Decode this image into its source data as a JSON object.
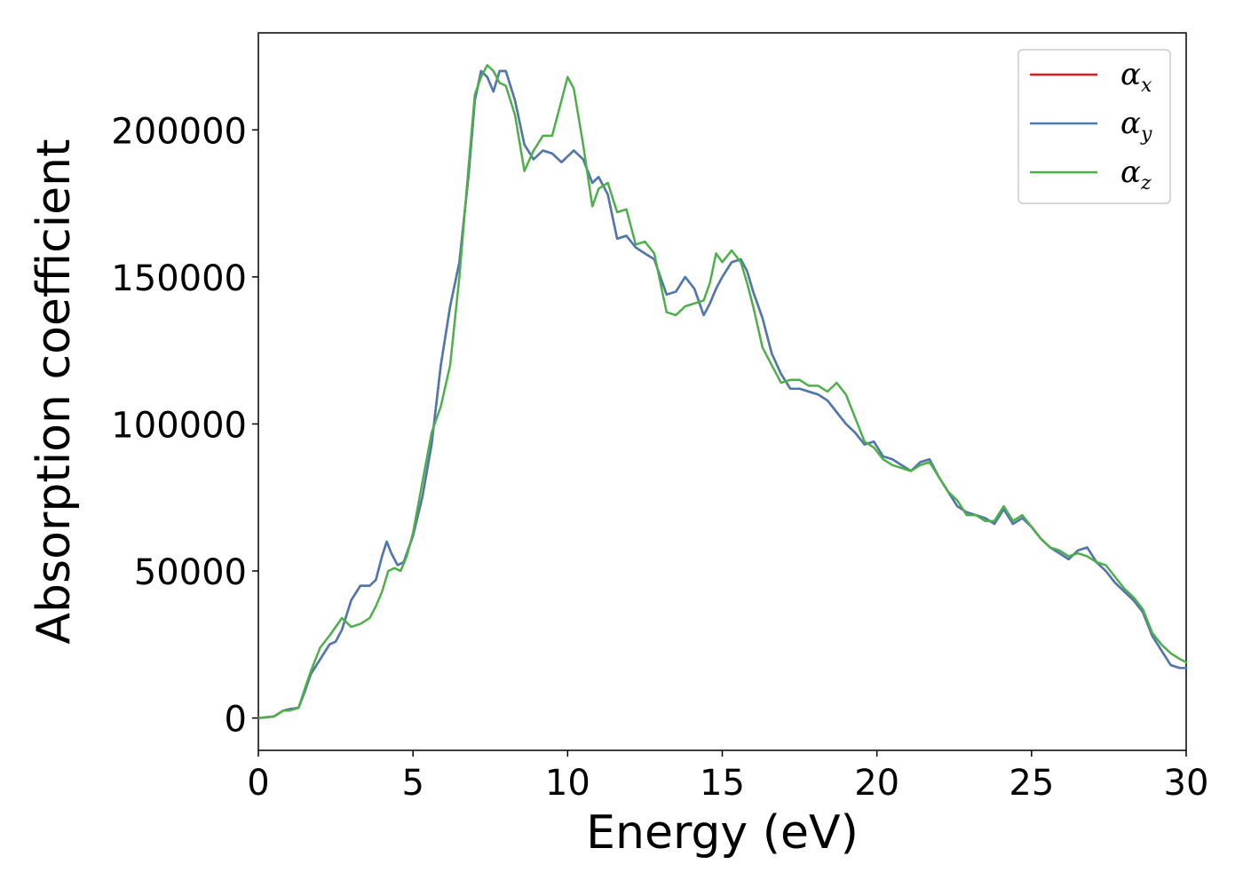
{
  "chart_data": {
    "type": "line",
    "title": "",
    "xlabel": "Energy (eV)",
    "ylabel": "Absorption coefficient",
    "xlim": [
      0,
      30
    ],
    "ylim": [
      -11000,
      233000
    ],
    "xticks": [
      0,
      5,
      10,
      15,
      20,
      25,
      30
    ],
    "xtick_labels": [
      "0",
      "5",
      "10",
      "15",
      "20",
      "25",
      "30"
    ],
    "yticks": [
      0,
      50000,
      100000,
      150000,
      200000
    ],
    "ytick_labels": [
      "0",
      "50000",
      "100000",
      "150000",
      "200000"
    ],
    "grid": false,
    "legend_position": "top-right",
    "series": [
      {
        "name": "α",
        "subscript": "x",
        "color": "#e41a1c",
        "x": [
          0,
          0.5,
          0.8,
          1.0,
          1.3,
          1.5,
          1.7,
          2.0,
          2.3,
          2.5,
          2.7,
          3.0,
          3.3,
          3.6,
          3.8,
          4.0,
          4.15,
          4.3,
          4.5,
          4.7,
          5.0,
          5.3,
          5.6,
          5.9,
          6.2,
          6.5,
          6.8,
          7.0,
          7.2,
          7.4,
          7.6,
          7.8,
          8.0,
          8.3,
          8.6,
          8.9,
          9.2,
          9.5,
          9.8,
          10.0,
          10.2,
          10.5,
          10.8,
          11.0,
          11.3,
          11.6,
          11.9,
          12.2,
          12.5,
          12.8,
          13.0,
          13.2,
          13.5,
          13.8,
          14.1,
          14.4,
          14.6,
          14.8,
          15.0,
          15.3,
          15.6,
          15.8,
          16.0,
          16.3,
          16.6,
          16.9,
          17.2,
          17.5,
          17.8,
          18.1,
          18.4,
          18.7,
          19.0,
          19.3,
          19.6,
          19.9,
          20.2,
          20.5,
          20.8,
          21.1,
          21.4,
          21.7,
          22.0,
          22.3,
          22.6,
          22.9,
          23.2,
          23.5,
          23.8,
          24.1,
          24.4,
          24.7,
          25.0,
          25.3,
          25.6,
          25.9,
          26.2,
          26.5,
          26.8,
          27.1,
          27.4,
          27.7,
          28.0,
          28.3,
          28.6,
          28.9,
          29.2,
          29.5,
          29.8,
          30.0
        ],
        "y": [
          0,
          500,
          2500,
          3000,
          3500,
          9000,
          15000,
          20000,
          25000,
          26000,
          30000,
          40000,
          45000,
          45000,
          47000,
          55000,
          60000,
          56000,
          52000,
          53000,
          62000,
          75000,
          93000,
          120000,
          140000,
          155000,
          185000,
          210000,
          220000,
          218000,
          213000,
          220000,
          220000,
          210000,
          195000,
          190000,
          193000,
          192000,
          189000,
          191000,
          193000,
          190000,
          182000,
          184000,
          178000,
          163000,
          164000,
          160000,
          158000,
          156000,
          150000,
          144000,
          145000,
          150000,
          146000,
          137000,
          141000,
          146000,
          150000,
          155000,
          156000,
          152000,
          145000,
          136000,
          124000,
          117000,
          112000,
          112000,
          111000,
          110000,
          108000,
          104000,
          100000,
          97000,
          93000,
          94000,
          89000,
          88000,
          86000,
          84000,
          87000,
          88000,
          82000,
          77000,
          72000,
          70000,
          69000,
          68000,
          66000,
          71000,
          66000,
          68000,
          65000,
          61000,
          58000,
          56000,
          54000,
          57000,
          58000,
          53000,
          50000,
          46000,
          43000,
          40000,
          36000,
          28000,
          23000,
          18000,
          17000,
          17000
        ]
      },
      {
        "name": "α",
        "subscript": "y",
        "color": "#4a7ab3",
        "x": [
          0,
          0.5,
          0.8,
          1.0,
          1.3,
          1.5,
          1.7,
          2.0,
          2.3,
          2.5,
          2.7,
          3.0,
          3.3,
          3.6,
          3.8,
          4.0,
          4.15,
          4.3,
          4.5,
          4.7,
          5.0,
          5.3,
          5.6,
          5.9,
          6.2,
          6.5,
          6.8,
          7.0,
          7.2,
          7.4,
          7.6,
          7.8,
          8.0,
          8.3,
          8.6,
          8.9,
          9.2,
          9.5,
          9.8,
          10.0,
          10.2,
          10.5,
          10.8,
          11.0,
          11.3,
          11.6,
          11.9,
          12.2,
          12.5,
          12.8,
          13.0,
          13.2,
          13.5,
          13.8,
          14.1,
          14.4,
          14.6,
          14.8,
          15.0,
          15.3,
          15.6,
          15.8,
          16.0,
          16.3,
          16.6,
          16.9,
          17.2,
          17.5,
          17.8,
          18.1,
          18.4,
          18.7,
          19.0,
          19.3,
          19.6,
          19.9,
          20.2,
          20.5,
          20.8,
          21.1,
          21.4,
          21.7,
          22.0,
          22.3,
          22.6,
          22.9,
          23.2,
          23.5,
          23.8,
          24.1,
          24.4,
          24.7,
          25.0,
          25.3,
          25.6,
          25.9,
          26.2,
          26.5,
          26.8,
          27.1,
          27.4,
          27.7,
          28.0,
          28.3,
          28.6,
          28.9,
          29.2,
          29.5,
          29.8,
          30.0
        ],
        "y": [
          0,
          500,
          2500,
          3000,
          3500,
          9000,
          15000,
          20000,
          25000,
          26000,
          30000,
          40000,
          45000,
          45000,
          47000,
          55000,
          60000,
          56000,
          52000,
          53000,
          62000,
          75000,
          93000,
          120000,
          140000,
          155000,
          185000,
          210000,
          220000,
          218000,
          213000,
          220000,
          220000,
          210000,
          195000,
          190000,
          193000,
          192000,
          189000,
          191000,
          193000,
          190000,
          182000,
          184000,
          178000,
          163000,
          164000,
          160000,
          158000,
          156000,
          150000,
          144000,
          145000,
          150000,
          146000,
          137000,
          141000,
          146000,
          150000,
          155000,
          156000,
          152000,
          145000,
          136000,
          124000,
          117000,
          112000,
          112000,
          111000,
          110000,
          108000,
          104000,
          100000,
          97000,
          93000,
          94000,
          89000,
          88000,
          86000,
          84000,
          87000,
          88000,
          82000,
          77000,
          72000,
          70000,
          69000,
          68000,
          66000,
          71000,
          66000,
          68000,
          65000,
          61000,
          58000,
          56000,
          54000,
          57000,
          58000,
          53000,
          50000,
          46000,
          43000,
          40000,
          36000,
          28000,
          23000,
          18000,
          17000,
          17000
        ]
      },
      {
        "name": "α",
        "subscript": "z",
        "color": "#4daf4a",
        "x": [
          0,
          0.5,
          0.8,
          1.0,
          1.3,
          1.5,
          1.7,
          2.0,
          2.3,
          2.5,
          2.7,
          3.0,
          3.3,
          3.6,
          3.8,
          4.0,
          4.2,
          4.4,
          4.6,
          4.8,
          5.0,
          5.3,
          5.6,
          5.9,
          6.2,
          6.5,
          6.8,
          7.0,
          7.2,
          7.4,
          7.6,
          7.8,
          8.0,
          8.3,
          8.6,
          8.9,
          9.2,
          9.5,
          9.8,
          10.0,
          10.2,
          10.5,
          10.8,
          11.0,
          11.3,
          11.6,
          11.9,
          12.2,
          12.5,
          12.8,
          13.0,
          13.2,
          13.5,
          13.8,
          14.1,
          14.4,
          14.6,
          14.8,
          15.0,
          15.3,
          15.6,
          15.8,
          16.0,
          16.3,
          16.6,
          16.9,
          17.2,
          17.5,
          17.8,
          18.1,
          18.4,
          18.7,
          19.0,
          19.3,
          19.6,
          19.9,
          20.2,
          20.5,
          20.8,
          21.1,
          21.4,
          21.7,
          22.0,
          22.3,
          22.6,
          22.9,
          23.2,
          23.5,
          23.8,
          24.1,
          24.4,
          24.7,
          25.0,
          25.3,
          25.6,
          25.9,
          26.2,
          26.5,
          26.8,
          27.1,
          27.4,
          27.7,
          28.0,
          28.3,
          28.6,
          28.9,
          29.2,
          29.5,
          29.8,
          30.0
        ],
        "y": [
          0,
          500,
          2500,
          2500,
          3500,
          10000,
          16000,
          24000,
          28000,
          31000,
          34000,
          31000,
          32000,
          34000,
          38000,
          43000,
          50000,
          51000,
          50000,
          55000,
          63000,
          80000,
          97000,
          106000,
          120000,
          150000,
          188000,
          212000,
          218000,
          222000,
          220000,
          216000,
          215000,
          205000,
          186000,
          193000,
          198000,
          198000,
          210000,
          218000,
          214000,
          195000,
          174000,
          180000,
          182000,
          172000,
          173000,
          161000,
          162000,
          158000,
          148000,
          138000,
          137000,
          140000,
          141000,
          142000,
          148000,
          158000,
          155000,
          159000,
          155000,
          148000,
          140000,
          126000,
          120000,
          114000,
          115000,
          115000,
          113000,
          113000,
          111000,
          114000,
          110000,
          102000,
          94000,
          92000,
          88000,
          86000,
          85000,
          84000,
          86000,
          87000,
          82000,
          77000,
          74000,
          69000,
          69000,
          67000,
          67000,
          72000,
          67000,
          69000,
          65000,
          61000,
          58000,
          57000,
          55000,
          56000,
          55000,
          53000,
          52000,
          48000,
          44000,
          41000,
          37000,
          29000,
          25000,
          22000,
          20000,
          19000
        ]
      }
    ]
  }
}
